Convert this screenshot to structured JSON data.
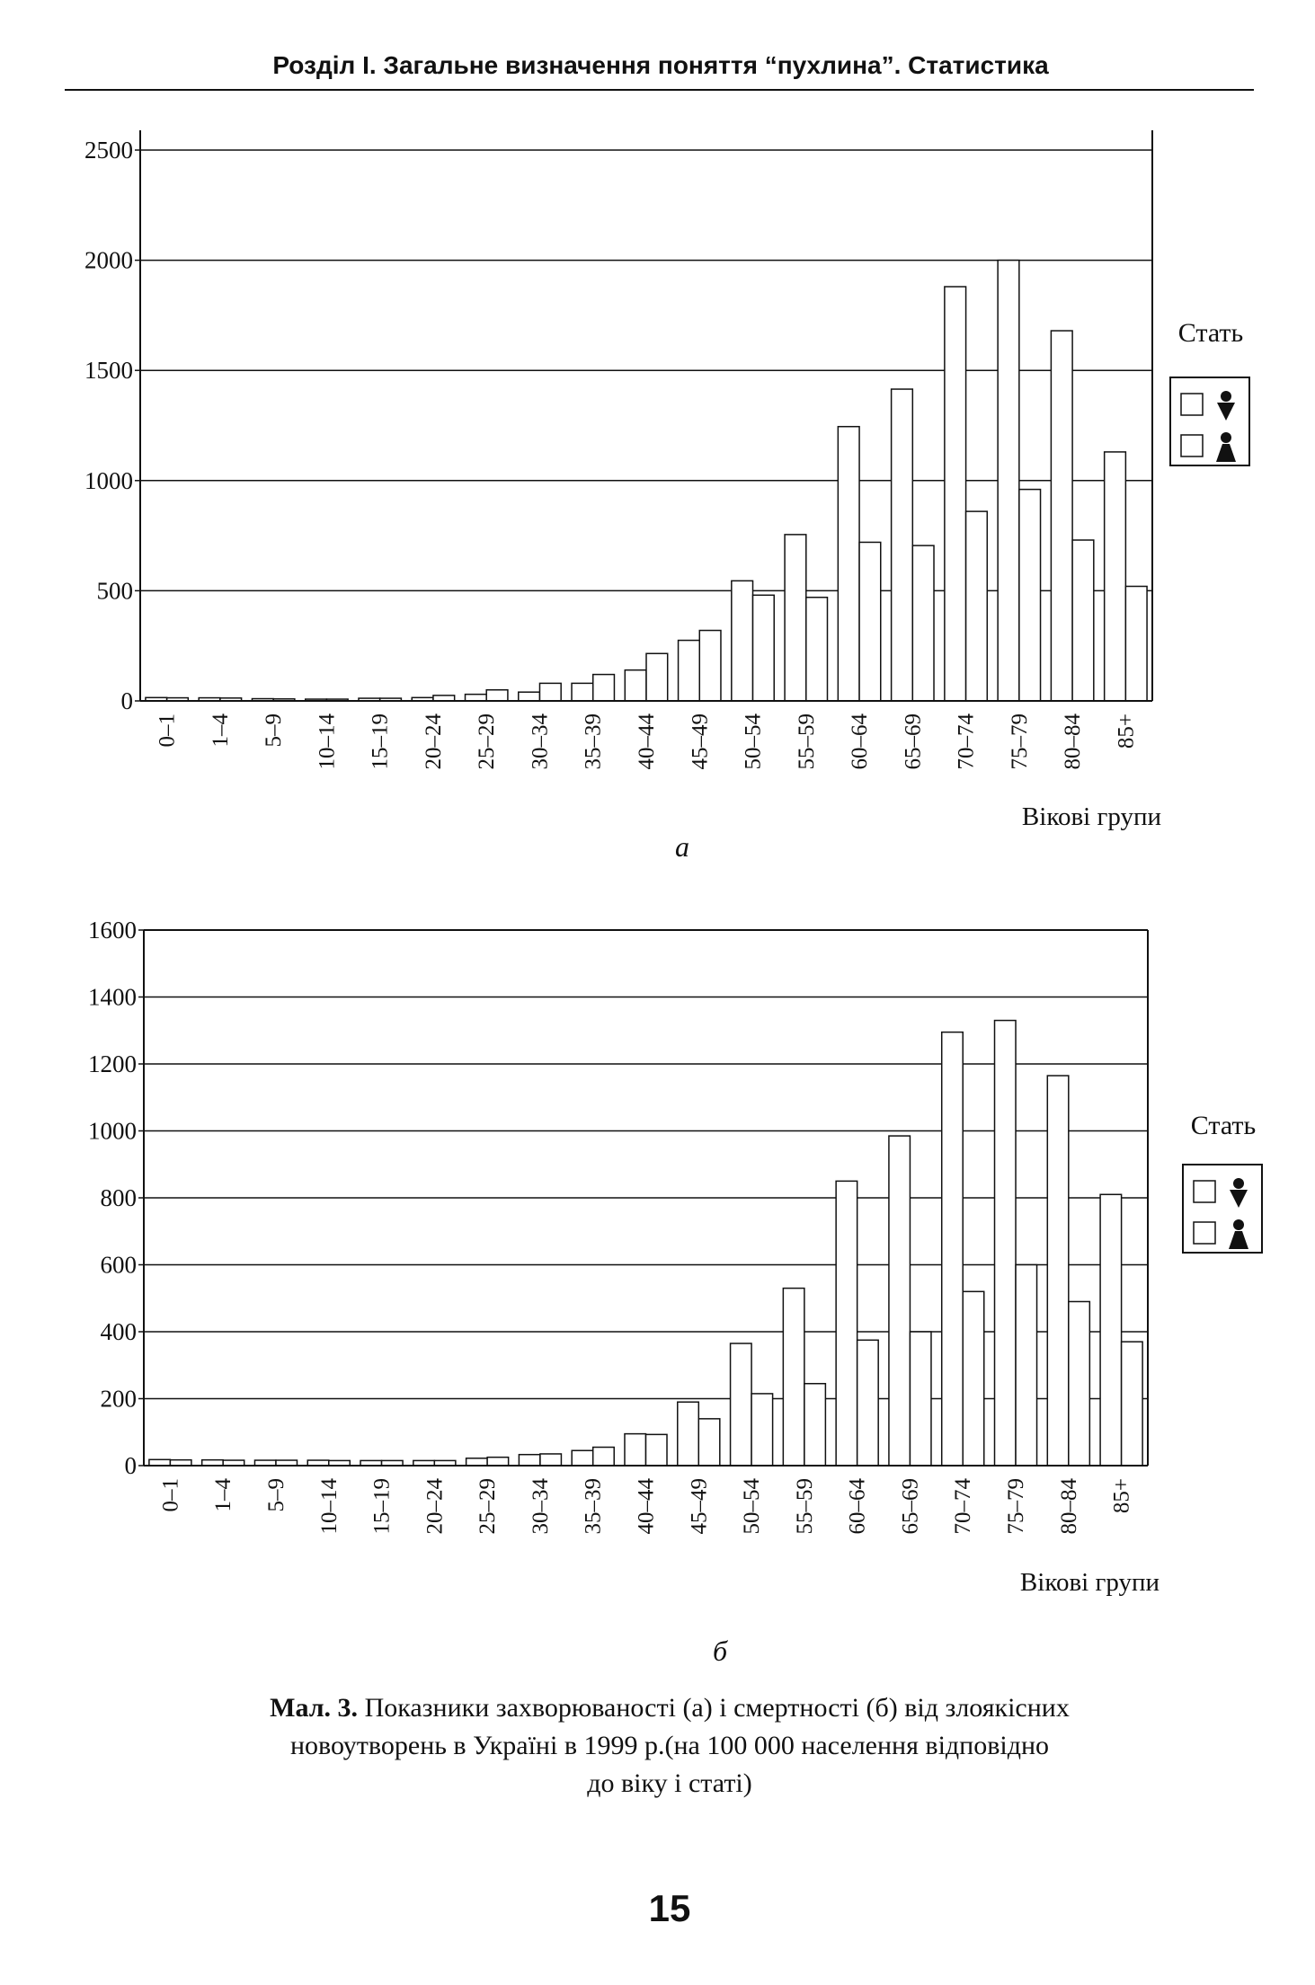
{
  "header": "Розділ І. Загальне визначення поняття “пухлина”. Статистика",
  "chart_data": [
    {
      "type": "bar",
      "subcaption": "а",
      "x_label": "Вікові групи",
      "legend_title": "Стать",
      "grid": true,
      "categories": [
        "0–1",
        "1–4",
        "5–9",
        "10–14",
        "15–19",
        "20–24",
        "25–29",
        "30–34",
        "35–39",
        "40–44",
        "45–49",
        "50–54",
        "55–59",
        "60–64",
        "65–69",
        "70–74",
        "75–79",
        "80–84",
        "85+"
      ],
      "series": [
        {
          "color": "#ffffff",
          "values": [
            15,
            14,
            10,
            8,
            12,
            15,
            30,
            40,
            80,
            140,
            275,
            545,
            755,
            1245,
            1415,
            1880,
            2000,
            1680,
            1130
          ]
        },
        {
          "color": "#ffffff",
          "values": [
            14,
            13,
            9,
            8,
            12,
            25,
            50,
            80,
            120,
            215,
            320,
            480,
            470,
            720,
            705,
            860,
            960,
            730,
            520
          ]
        }
      ],
      "ylim": [
        0,
        2500
      ],
      "yticks": [
        0,
        500,
        1000,
        1500,
        2000,
        2500
      ]
    },
    {
      "type": "bar",
      "subcaption": "б",
      "x_label": "Вікові групи",
      "legend_title": "Стать",
      "grid": true,
      "categories": [
        "0–1",
        "1–4",
        "5–9",
        "10–14",
        "15–19",
        "20–24",
        "25–29",
        "30–34",
        "35–39",
        "40–44",
        "45–49",
        "50–54",
        "55–59",
        "60–64",
        "65–69",
        "70–74",
        "75–79",
        "80–84",
        "85+"
      ],
      "series": [
        {
          "color": "#ffffff",
          "values": [
            18,
            17,
            16,
            16,
            15,
            15,
            22,
            33,
            45,
            95,
            190,
            365,
            530,
            850,
            985,
            1295,
            1330,
            1165,
            810
          ]
        },
        {
          "color": "#ffffff",
          "values": [
            17,
            16,
            16,
            15,
            15,
            15,
            25,
            35,
            55,
            93,
            140,
            215,
            245,
            375,
            400,
            520,
            600,
            490,
            370
          ]
        }
      ],
      "ylim": [
        0,
        1600
      ],
      "yticks": [
        0,
        200,
        400,
        600,
        800,
        1000,
        1200,
        1400,
        1600
      ]
    }
  ],
  "caption_label": "Мал. 3.",
  "caption_lines": [
    "Показники захворюваності (а) і смертності (б) від злоякісних",
    "новоутворень в Україні в 1999 р.(на 100 000 населення відповідно",
    "до віку і статі)"
  ],
  "page_number": "15"
}
